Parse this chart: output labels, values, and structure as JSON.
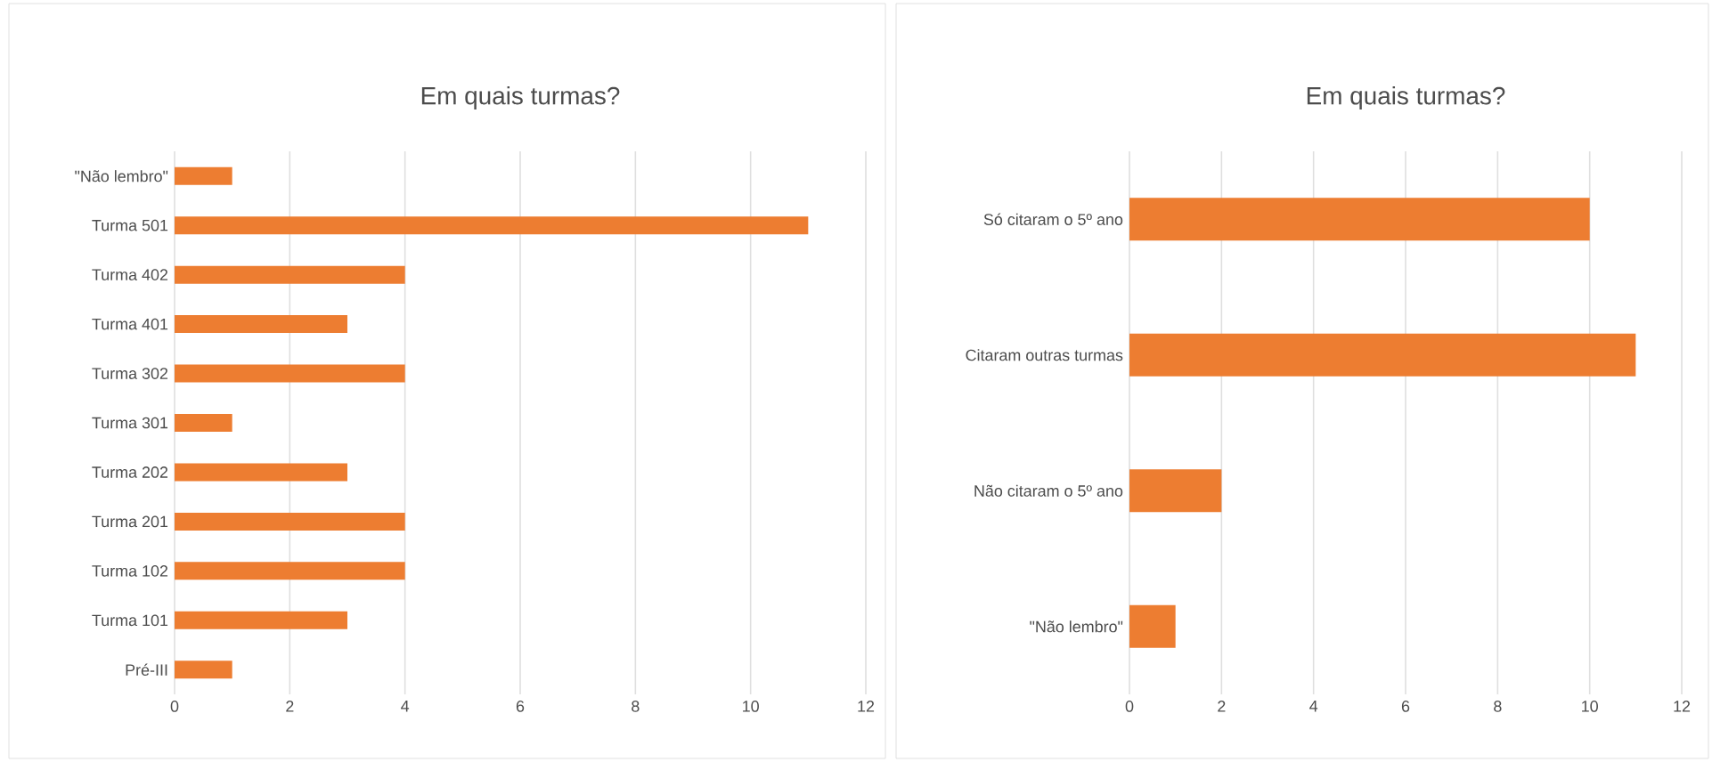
{
  "chart_data": [
    {
      "type": "bar",
      "orientation": "horizontal",
      "title": "Em quais turmas?",
      "categories": [
        "\"Não lembro\"",
        "Turma 501",
        "Turma 402",
        "Turma 401",
        "Turma 302",
        "Turma 301",
        "Turma 202",
        "Turma 201",
        "Turma 102",
        "Turma 101",
        "Pré-III"
      ],
      "values": [
        1,
        11,
        4,
        3,
        4,
        1,
        3,
        4,
        4,
        3,
        1
      ],
      "color": "#ed7d31",
      "xlim": [
        0,
        12
      ],
      "xticks": [
        0,
        2,
        4,
        6,
        8,
        10,
        12
      ],
      "grid": "x"
    },
    {
      "type": "bar",
      "orientation": "horizontal",
      "title": "Em quais turmas?",
      "categories": [
        "Só citaram o 5º ano",
        "Citaram outras turmas",
        "Não citaram o 5º ano",
        "\"Não lembro\""
      ],
      "values": [
        10,
        11,
        2,
        1
      ],
      "color": "#ed7d31",
      "xlim": [
        0,
        12
      ],
      "xticks": [
        0,
        2,
        4,
        6,
        8,
        10,
        12
      ],
      "grid": "x"
    }
  ]
}
